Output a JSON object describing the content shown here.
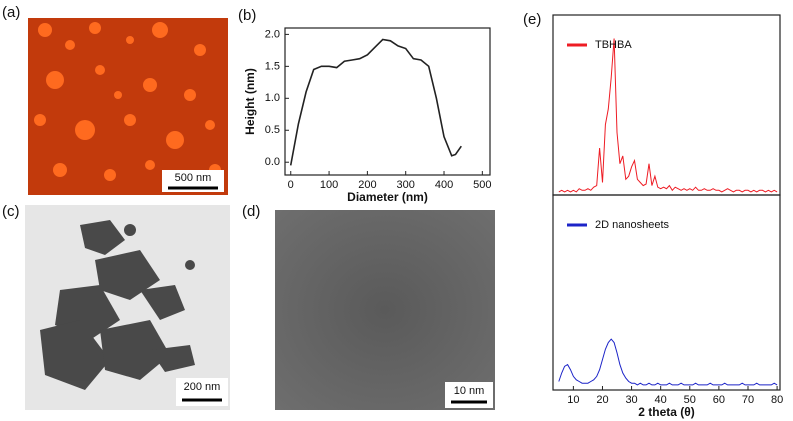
{
  "panels": {
    "a": {
      "label": "(a)",
      "scale_bar": "500 nm"
    },
    "b": {
      "label": "(b)"
    },
    "c": {
      "label": "(c)",
      "scale_bar": "200 nm"
    },
    "d": {
      "label": "(d)",
      "scale_bar": "10 nm"
    },
    "e": {
      "label": "(e)"
    }
  },
  "chart_data": [
    {
      "type": "line",
      "xlabel": "Diameter (nm)",
      "ylabel": "Height (nm)",
      "color": "#222222",
      "x": [
        0,
        20,
        40,
        60,
        80,
        100,
        120,
        140,
        160,
        180,
        200,
        220,
        240,
        260,
        280,
        300,
        320,
        340,
        360,
        380,
        400,
        420,
        430,
        445
      ],
      "values": [
        -0.05,
        0.6,
        1.1,
        1.45,
        1.5,
        1.5,
        1.48,
        1.58,
        1.6,
        1.62,
        1.68,
        1.8,
        1.92,
        1.9,
        1.82,
        1.78,
        1.62,
        1.6,
        1.5,
        1.0,
        0.4,
        0.1,
        0.12,
        0.25
      ],
      "xlim": [
        -15,
        520
      ],
      "xticks": [
        0,
        100,
        200,
        300,
        400,
        500
      ],
      "ylim": [
        -0.2,
        2.1
      ],
      "yticks": [
        {
          "value": 0,
          "label": "0.0"
        },
        {
          "value": 0.5,
          "label": "0.5"
        },
        {
          "value": 1,
          "label": "1.0"
        },
        {
          "value": 1.5,
          "label": "1.5"
        },
        {
          "value": 2,
          "label": "2.0"
        }
      ]
    },
    {
      "type": "line",
      "xlim": [
        3,
        81
      ],
      "ylim": [
        0,
        115
      ],
      "x": [
        5,
        6,
        7,
        8,
        9,
        10,
        11,
        12,
        13,
        14,
        15,
        16,
        17,
        18,
        19,
        20,
        21,
        22,
        23,
        24,
        25,
        26,
        27,
        28,
        29,
        30,
        31,
        32,
        33,
        34,
        35,
        36,
        37,
        38,
        39,
        40,
        41,
        42,
        43,
        44,
        45,
        46,
        47,
        48,
        49,
        50,
        51,
        52,
        53,
        54,
        55,
        56,
        57,
        58,
        59,
        60,
        61,
        62,
        63,
        64,
        65,
        66,
        67,
        68,
        69,
        70,
        71,
        72,
        73,
        74,
        75,
        76,
        77,
        78,
        79,
        80
      ],
      "series": [
        {
          "name": "TBHBA",
          "color": "#ee1c24",
          "values": [
            2,
            3,
            2,
            3,
            2,
            3,
            2,
            4,
            3,
            3,
            4,
            3,
            5,
            6,
            30,
            8,
            45,
            55,
            75,
            100,
            40,
            20,
            25,
            10,
            12,
            18,
            22,
            10,
            8,
            6,
            7,
            20,
            6,
            12,
            5,
            4,
            5,
            4,
            6,
            3,
            5,
            4,
            3,
            4,
            3,
            4,
            3,
            5,
            3,
            3,
            4,
            3,
            3,
            4,
            3,
            3,
            2,
            3,
            4,
            3,
            2,
            3,
            3,
            2,
            3,
            3,
            2,
            3,
            2,
            3,
            3,
            2,
            3,
            2,
            3,
            2
          ]
        }
      ]
    },
    {
      "type": "line",
      "xlabel": "2 theta (θ)",
      "xlim": [
        3,
        81
      ],
      "ylim": [
        0,
        115
      ],
      "xticks": [
        10,
        20,
        30,
        40,
        50,
        60,
        70,
        80
      ],
      "x": [
        5,
        6,
        7,
        8,
        9,
        10,
        11,
        12,
        13,
        14,
        15,
        16,
        17,
        18,
        19,
        20,
        21,
        22,
        23,
        24,
        25,
        26,
        27,
        28,
        29,
        30,
        31,
        32,
        33,
        34,
        35,
        36,
        37,
        38,
        39,
        40,
        41,
        42,
        43,
        44,
        45,
        46,
        47,
        48,
        49,
        50,
        51,
        52,
        53,
        54,
        55,
        56,
        57,
        58,
        59,
        60,
        61,
        62,
        63,
        64,
        65,
        66,
        67,
        68,
        69,
        70,
        71,
        72,
        73,
        74,
        75,
        76,
        77,
        78,
        79,
        80
      ],
      "series": [
        {
          "name": "2D nanosheets",
          "color": "#1c24c8",
          "values": [
            5,
            10,
            14,
            15,
            12,
            8,
            6,
            5,
            4,
            4,
            4,
            5,
            6,
            8,
            12,
            18,
            24,
            28,
            30,
            28,
            22,
            15,
            10,
            7,
            5,
            4,
            4,
            3,
            4,
            3,
            3,
            4,
            3,
            3,
            4,
            3,
            3,
            3,
            4,
            3,
            3,
            3,
            4,
            3,
            3,
            3,
            3,
            4,
            3,
            3,
            3,
            3,
            4,
            3,
            3,
            3,
            3,
            4,
            3,
            3,
            3,
            3,
            3,
            4,
            3,
            3,
            3,
            3,
            4,
            3,
            3,
            3,
            3,
            3,
            4,
            3
          ]
        }
      ]
    }
  ]
}
